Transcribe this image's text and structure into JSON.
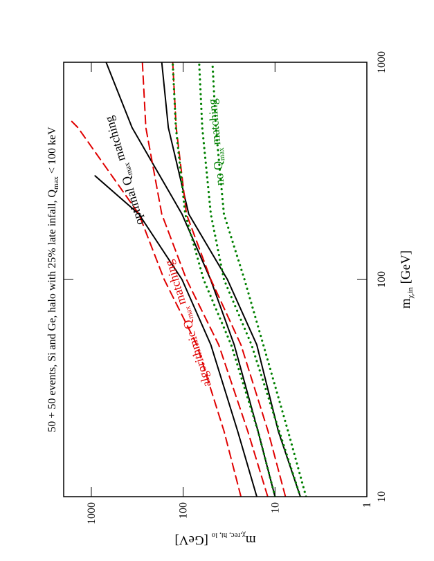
{
  "chart_data": {
    "type": "line",
    "title": {
      "text": "50 + 50 events, Si and Ge, halo with 25% late infall, Q",
      "sub": "max",
      "tail": " < 100 keV"
    },
    "x_label": {
      "text": "m",
      "sub": "χ,in",
      "tail": " [GeV]"
    },
    "y_label": {
      "text": "m",
      "sub": "χ,rec, hi, lo",
      "tail": " [GeV]"
    },
    "log_x": true,
    "log_y": true,
    "xlim": [
      10,
      1000
    ],
    "ylim": [
      1,
      2000
    ],
    "xticks": [
      10,
      100,
      1000
    ],
    "yticks": [
      1,
      10,
      100,
      1000
    ],
    "series": [
      {
        "color": "#000000",
        "style": "solid",
        "x": [
          10,
          20,
          50,
          100,
          200,
          300
        ],
        "values": [
          15.8,
          25.5,
          50,
          103,
          303,
          910
        ]
      },
      {
        "color": "#000000",
        "style": "solid",
        "x": [
          10,
          20,
          50,
          100,
          200,
          500,
          1000
        ],
        "values": [
          10,
          15.3,
          27.8,
          50.3,
          103,
          360,
          690
        ]
      },
      {
        "color": "#000000",
        "style": "solid",
        "x": [
          10,
          20,
          50,
          100,
          200,
          500,
          1000
        ],
        "values": [
          5.3,
          9.2,
          15.8,
          33,
          87,
          145,
          171
        ]
      },
      {
        "color": "#e00000",
        "style": "dashed",
        "x": [
          10,
          20,
          50,
          100,
          200,
          500,
          550
        ],
        "values": [
          23.5,
          35.9,
          71,
          161,
          303,
          1400,
          1750
        ]
      },
      {
        "color": "#e00000",
        "style": "dashed",
        "x": [
          10,
          20,
          50,
          100,
          200,
          500,
          1000
        ],
        "values": [
          12,
          19.8,
          41,
          92,
          171,
          255,
          278
        ]
      },
      {
        "color": "#e00000",
        "style": "dashed",
        "x": [
          10,
          20,
          50,
          100,
          200,
          500,
          1000
        ],
        "values": [
          7.7,
          11.9,
          23.5,
          50,
          92,
          119,
          130
        ]
      },
      {
        "color": "#008000",
        "style": "dotted",
        "x": [
          10,
          20,
          50,
          100,
          200,
          500,
          1000
        ],
        "values": [
          10,
          15.3,
          30,
          60,
          95,
          120,
          130
        ]
      },
      {
        "color": "#008000",
        "style": "dotted",
        "x": [
          10,
          20,
          50,
          100,
          200,
          500,
          1000
        ],
        "values": [
          5.3,
          9,
          18,
          36,
          50,
          62,
          67
        ]
      },
      {
        "color": "#008000",
        "style": "dotted",
        "x": [
          10,
          20,
          50,
          100,
          200,
          500,
          1000
        ],
        "values": [
          4.6,
          7.2,
          13.4,
          21.5,
          36,
          44,
          48
        ]
      }
    ],
    "annotations": [
      {
        "text": "optimal Q",
        "sub": "max",
        "tail": " matching",
        "color": "#000000"
      },
      {
        "text": "algorithmic Q",
        "sub": "max",
        "tail": " matching",
        "color": "#e00000"
      },
      {
        "text": "no Q",
        "sub": "max",
        "tail": " matching",
        "color": "#008000"
      }
    ]
  }
}
